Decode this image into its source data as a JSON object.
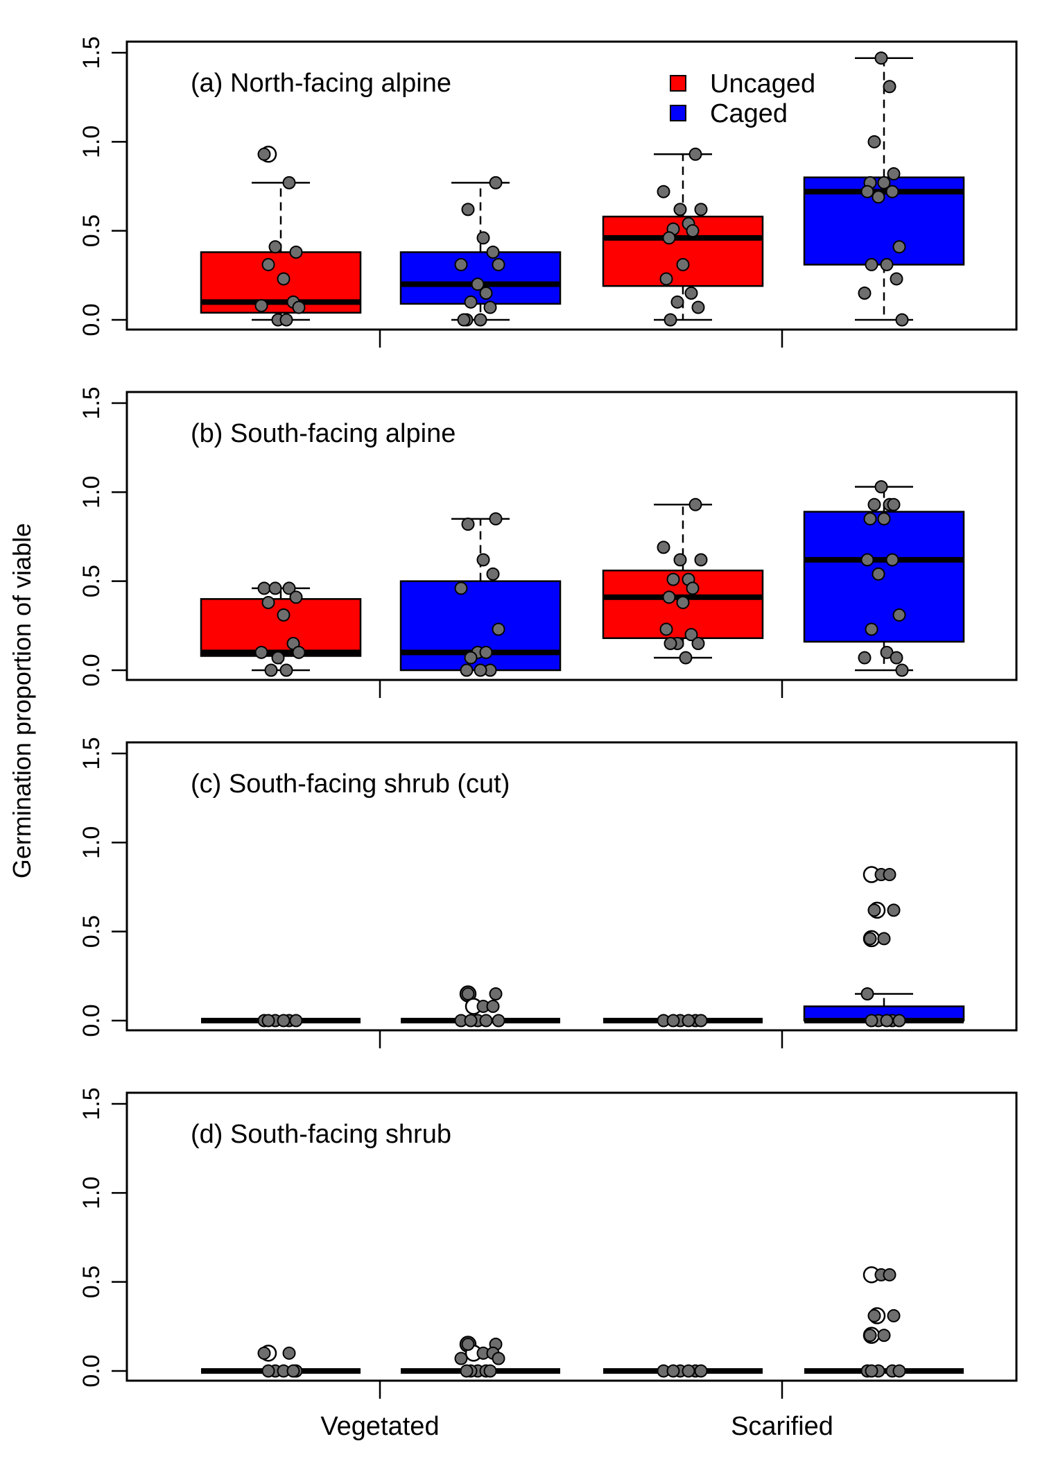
{
  "colors": {
    "uncaged": "#ff0000",
    "caged": "#0000ff",
    "point_fill": "#6e6e6e",
    "outlier_fill": "#ffffff",
    "line": "#000000"
  },
  "legend": {
    "placement": "top-right of panel (a)",
    "items": [
      {
        "label": "Uncaged",
        "color": "#ff0000"
      },
      {
        "label": "Caged",
        "color": "#0000ff"
      }
    ]
  },
  "chart_data": {
    "type": "box",
    "ylabel": "Germination proportion of viable",
    "categories": [
      "Vegetated",
      "Scarified"
    ],
    "groups": [
      "Uncaged",
      "Caged"
    ],
    "ylim": [
      0,
      1.5
    ],
    "yticks": [
      "0.0",
      "0.5",
      "1.0",
      "1.5"
    ],
    "grid": false,
    "panels": [
      {
        "title": "(a) North-facing alpine",
        "boxes": [
          {
            "category": "Vegetated",
            "group": "Uncaged",
            "q1": 0.04,
            "median": 0.1,
            "q3": 0.38,
            "whisker_low": 0.0,
            "whisker_high": 0.77,
            "points": [
              0.93,
              0.77,
              0.41,
              0.38,
              0.31,
              0.23,
              0.1,
              0.08,
              0.07,
              0.0,
              0.0
            ],
            "outliers": [
              0.93
            ]
          },
          {
            "category": "Vegetated",
            "group": "Caged",
            "q1": 0.09,
            "median": 0.2,
            "q3": 0.38,
            "whisker_low": 0.0,
            "whisker_high": 0.77,
            "points": [
              0.77,
              0.62,
              0.46,
              0.38,
              0.31,
              0.31,
              0.2,
              0.15,
              0.1,
              0.07,
              0.0,
              0.0,
              0.0
            ],
            "outliers": []
          },
          {
            "category": "Scarified",
            "group": "Uncaged",
            "q1": 0.19,
            "median": 0.46,
            "q3": 0.58,
            "whisker_low": 0.0,
            "whisker_high": 0.93,
            "points": [
              0.93,
              0.72,
              0.62,
              0.62,
              0.54,
              0.51,
              0.5,
              0.46,
              0.31,
              0.23,
              0.15,
              0.1,
              0.07,
              0.0
            ],
            "outliers": []
          },
          {
            "category": "Scarified",
            "group": "Caged",
            "q1": 0.31,
            "median": 0.72,
            "q3": 0.8,
            "whisker_low": 0.0,
            "whisker_high": 1.47,
            "points": [
              1.47,
              1.31,
              1.0,
              0.82,
              0.77,
              0.77,
              0.72,
              0.72,
              0.69,
              0.41,
              0.31,
              0.31,
              0.23,
              0.15,
              0.0
            ],
            "outliers": []
          }
        ]
      },
      {
        "title": "(b) South-facing alpine",
        "boxes": [
          {
            "category": "Vegetated",
            "group": "Uncaged",
            "q1": 0.08,
            "median": 0.1,
            "q3": 0.4,
            "whisker_low": 0.0,
            "whisker_high": 0.46,
            "points": [
              0.46,
              0.46,
              0.46,
              0.41,
              0.38,
              0.31,
              0.15,
              0.1,
              0.1,
              0.07,
              0.0,
              0.0
            ],
            "outliers": []
          },
          {
            "category": "Vegetated",
            "group": "Caged",
            "q1": 0.0,
            "median": 0.1,
            "q3": 0.5,
            "whisker_low": 0.0,
            "whisker_high": 0.85,
            "points": [
              0.85,
              0.82,
              0.62,
              0.54,
              0.46,
              0.23,
              0.1,
              0.1,
              0.07,
              0.0,
              0.0,
              0.0
            ],
            "outliers": []
          },
          {
            "category": "Scarified",
            "group": "Uncaged",
            "q1": 0.18,
            "median": 0.41,
            "q3": 0.56,
            "whisker_low": 0.07,
            "whisker_high": 0.93,
            "points": [
              0.93,
              0.69,
              0.62,
              0.62,
              0.51,
              0.51,
              0.46,
              0.41,
              0.38,
              0.23,
              0.2,
              0.15,
              0.15,
              0.15,
              0.07
            ],
            "outliers": []
          },
          {
            "category": "Scarified",
            "group": "Caged",
            "q1": 0.16,
            "median": 0.62,
            "q3": 0.89,
            "whisker_low": 0.0,
            "whisker_high": 1.03,
            "points": [
              1.03,
              0.93,
              0.93,
              0.93,
              0.85,
              0.85,
              0.62,
              0.62,
              0.54,
              0.31,
              0.23,
              0.1,
              0.07,
              0.07,
              0.0
            ],
            "outliers": []
          }
        ]
      },
      {
        "title": "(c) South-facing shrub (cut)",
        "boxes": [
          {
            "category": "Vegetated",
            "group": "Uncaged",
            "q1": 0.0,
            "median": 0.0,
            "q3": 0.0,
            "whisker_low": 0.0,
            "whisker_high": 0.0,
            "points": [
              0.0,
              0.0,
              0.0,
              0.0,
              0.0,
              0.0
            ],
            "outliers": []
          },
          {
            "category": "Vegetated",
            "group": "Caged",
            "q1": 0.0,
            "median": 0.0,
            "q3": 0.0,
            "whisker_low": 0.0,
            "whisker_high": 0.0,
            "points": [
              0.15,
              0.15,
              0.08,
              0.08,
              0.0,
              0.0,
              0.0,
              0.0,
              0.0
            ],
            "outliers": [
              0.15,
              0.08
            ]
          },
          {
            "category": "Scarified",
            "group": "Uncaged",
            "q1": 0.0,
            "median": 0.0,
            "q3": 0.0,
            "whisker_low": 0.0,
            "whisker_high": 0.0,
            "points": [
              0.0,
              0.0,
              0.0,
              0.0,
              0.0,
              0.0
            ],
            "outliers": []
          },
          {
            "category": "Scarified",
            "group": "Caged",
            "q1": 0.0,
            "median": 0.0,
            "q3": 0.08,
            "whisker_low": 0.0,
            "whisker_high": 0.15,
            "points": [
              0.82,
              0.82,
              0.62,
              0.62,
              0.46,
              0.46,
              0.15,
              0.0,
              0.0,
              0.0,
              0.0,
              0.0
            ],
            "outliers": [
              0.82,
              0.62,
              0.46
            ]
          }
        ]
      },
      {
        "title": "(d) South-facing shrub",
        "boxes": [
          {
            "category": "Vegetated",
            "group": "Uncaged",
            "q1": 0.0,
            "median": 0.0,
            "q3": 0.0,
            "whisker_low": 0.0,
            "whisker_high": 0.0,
            "points": [
              0.1,
              0.1,
              0.0,
              0.0,
              0.0,
              0.0,
              0.0
            ],
            "outliers": [
              0.1
            ]
          },
          {
            "category": "Vegetated",
            "group": "Caged",
            "q1": 0.0,
            "median": 0.0,
            "q3": 0.0,
            "whisker_low": 0.0,
            "whisker_high": 0.0,
            "points": [
              0.15,
              0.15,
              0.1,
              0.1,
              0.07,
              0.07,
              0.0,
              0.0,
              0.0,
              0.0,
              0.0
            ],
            "outliers": [
              0.15,
              0.1
            ]
          },
          {
            "category": "Scarified",
            "group": "Uncaged",
            "q1": 0.0,
            "median": 0.0,
            "q3": 0.0,
            "whisker_low": 0.0,
            "whisker_high": 0.0,
            "points": [
              0.0,
              0.0,
              0.0,
              0.0,
              0.0,
              0.0
            ],
            "outliers": []
          },
          {
            "category": "Scarified",
            "group": "Caged",
            "q1": 0.0,
            "median": 0.0,
            "q3": 0.0,
            "whisker_low": 0.0,
            "whisker_high": 0.0,
            "points": [
              0.54,
              0.54,
              0.31,
              0.31,
              0.2,
              0.2,
              0.0,
              0.0,
              0.0,
              0.0,
              0.0
            ],
            "outliers": [
              0.54,
              0.31,
              0.2
            ]
          }
        ]
      }
    ]
  }
}
